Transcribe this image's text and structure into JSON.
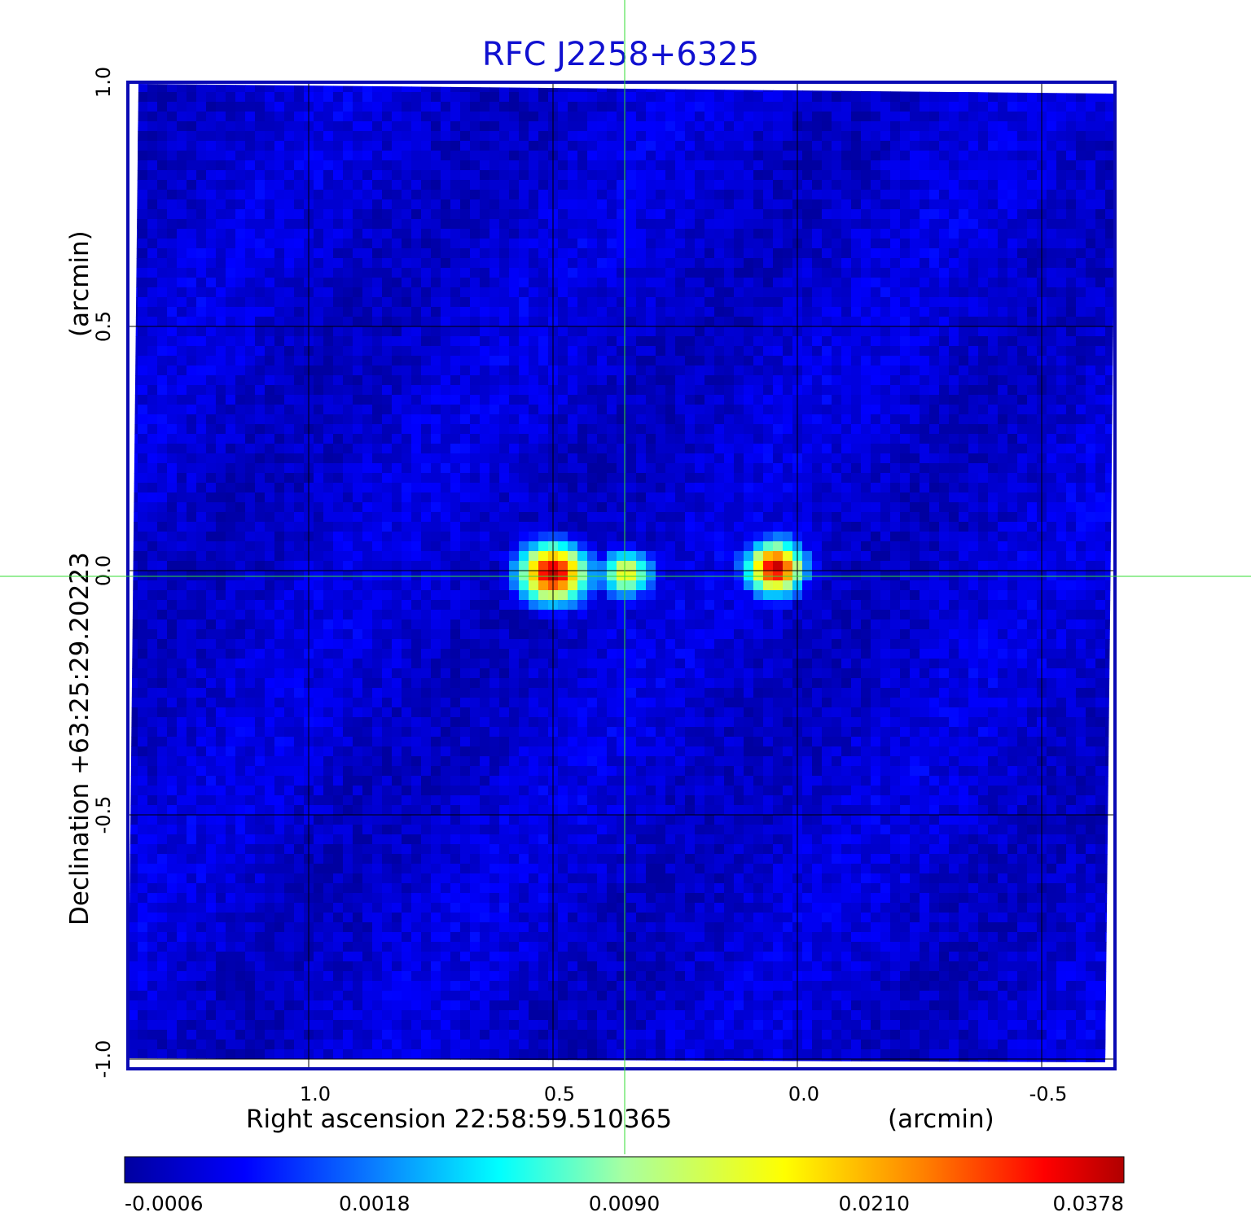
{
  "chart_data": {
    "type": "heatmap",
    "title": "RFC J2258+6325",
    "title_color": "#1010d0",
    "frame_color": "#0a0ab4",
    "crosshair_color": "#33dd33",
    "grid": true,
    "xlabel": "Right ascension  22:58:59.510365",
    "xunit": "(arcmin)",
    "ylabel": "Declination  +63:25:29.20223",
    "yunit": "(arcmin)",
    "x_ticks": [
      "1.0",
      "0.5",
      "0.0",
      "-0.5"
    ],
    "y_ticks": [
      "1.0",
      "0.5",
      "0.0",
      "-0.5",
      "-1.0"
    ],
    "x_tick_values": [
      1.0,
      0.5,
      0.0,
      -0.5
    ],
    "y_tick_values": [
      1.0,
      0.5,
      0.0,
      -0.5,
      -1.0
    ],
    "xlim": [
      1.37,
      -0.65
    ],
    "ylim": [
      -1.02,
      1.0
    ],
    "background_value": 0.0,
    "sources": [
      {
        "x": 0.5,
        "y": -0.005,
        "peak": 0.0378,
        "sigma_x": 0.035,
        "sigma_y": 0.03
      },
      {
        "x": 0.35,
        "y": -0.005,
        "peak": 0.016,
        "sigma_x": 0.025,
        "sigma_y": 0.022
      },
      {
        "x": 0.045,
        "y": 0.005,
        "peak": 0.037,
        "sigma_x": 0.028,
        "sigma_y": 0.026
      }
    ],
    "colorbar": {
      "ticks": [
        "-0.0006",
        "0.0018",
        "0.0090",
        "0.0210",
        "0.0378"
      ],
      "colors": [
        "#0000a0",
        "#0000ff",
        "#0a7dff",
        "#00ffff",
        "#a8ffa0",
        "#ffff00",
        "#ff8000",
        "#ff0000",
        "#b00000"
      ]
    }
  }
}
